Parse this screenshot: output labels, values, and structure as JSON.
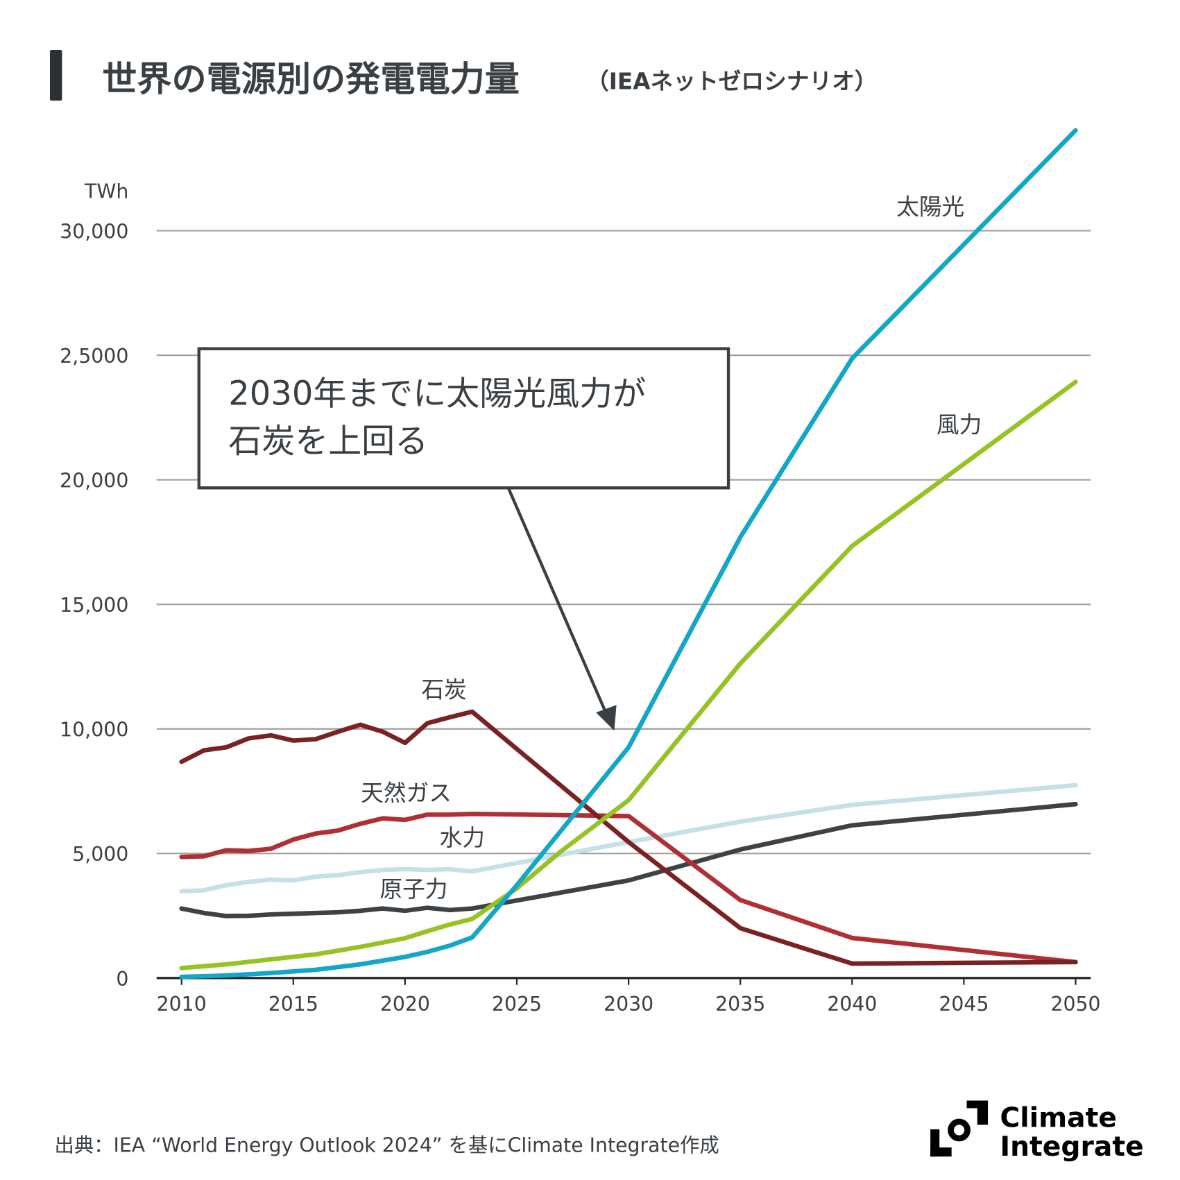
{
  "title": {
    "main": "世界の電源別の発電電力量",
    "sub": "（IEAネットゼロシナリオ）"
  },
  "source": "出典：IEA “World Energy Outlook 2024” を基にClimate Integrate作成",
  "logo": {
    "line1": "Climate",
    "line2": "Integrate"
  },
  "annotation": {
    "line1": "2030年までに太陽光風力が",
    "line2": "石炭を上回る"
  },
  "colors": {
    "solar": "#12a6c7",
    "wind": "#97c224",
    "coal": "#7a2222",
    "gas": "#b02f34",
    "hydro": "#c6e0e7",
    "nuclear": "#3c4246",
    "title": "#2b3034"
  },
  "chart_data": {
    "type": "line",
    "title": "世界の電源別の発電電力量（IEAネットゼロシナリオ）",
    "ylabel": "TWh",
    "xlabel": "",
    "xlim": [
      2010,
      2050
    ],
    "ylim": [
      0,
      30000
    ],
    "grid": true,
    "x_ticks": [
      "2010",
      "2015",
      "2020",
      "2025",
      "2030",
      "2035",
      "2040",
      "2045",
      "2050"
    ],
    "y_ticks": [
      {
        "v": 0,
        "label": "0"
      },
      {
        "v": 5000,
        "label": "5,000"
      },
      {
        "v": 10000,
        "label": "10,000"
      },
      {
        "v": 15000,
        "label": "15,000"
      },
      {
        "v": 20000,
        "label": "20,000"
      },
      {
        "v": 25000,
        "label": "2,5000"
      },
      {
        "v": 30000,
        "label": "30,000"
      }
    ],
    "series": [
      {
        "key": "hydro",
        "name": "水力",
        "x": [
          2010,
          2011,
          2012,
          2013,
          2014,
          2015,
          2016,
          2017,
          2018,
          2019,
          2020,
          2021,
          2022,
          2023,
          2030,
          2035,
          2040,
          2050
        ],
        "values": [
          3490,
          3520,
          3730,
          3860,
          3950,
          3920,
          4070,
          4130,
          4250,
          4340,
          4370,
          4340,
          4370,
          4280,
          5460,
          6280,
          6950,
          7740
        ]
      },
      {
        "key": "nuclear",
        "name": "原子力",
        "x": [
          2010,
          2011,
          2012,
          2013,
          2014,
          2015,
          2016,
          2017,
          2018,
          2019,
          2020,
          2021,
          2022,
          2023,
          2030,
          2035,
          2040,
          2050
        ],
        "values": [
          2790,
          2610,
          2490,
          2500,
          2550,
          2580,
          2610,
          2640,
          2700,
          2790,
          2700,
          2820,
          2730,
          2790,
          3920,
          5160,
          6130,
          6980
        ]
      },
      {
        "key": "gas",
        "name": "天然ガス",
        "x": [
          2010,
          2011,
          2012,
          2013,
          2014,
          2015,
          2016,
          2017,
          2018,
          2019,
          2020,
          2021,
          2022,
          2023,
          2030,
          2035,
          2040,
          2050
        ],
        "values": [
          4860,
          4890,
          5130,
          5100,
          5190,
          5560,
          5800,
          5920,
          6190,
          6410,
          6350,
          6560,
          6560,
          6590,
          6500,
          3130,
          1610,
          640
        ]
      },
      {
        "key": "coal",
        "name": "石炭",
        "x": [
          2010,
          2011,
          2012,
          2013,
          2014,
          2015,
          2016,
          2017,
          2018,
          2019,
          2020,
          2021,
          2022,
          2023,
          2030,
          2035,
          2040,
          2050
        ],
        "values": [
          8680,
          9140,
          9260,
          9620,
          9740,
          9530,
          9590,
          9890,
          10170,
          9890,
          9440,
          10230,
          10470,
          10690,
          5460,
          2000,
          580,
          640
        ]
      },
      {
        "key": "wind",
        "name": "風力",
        "x": [
          2010,
          2012,
          2014,
          2016,
          2018,
          2020,
          2021,
          2022,
          2023,
          2025,
          2027,
          2030,
          2035,
          2040,
          2050
        ],
        "values": [
          400,
          550,
          750,
          950,
          1250,
          1600,
          1880,
          2150,
          2370,
          3600,
          5100,
          7140,
          12630,
          17340,
          23930
        ]
      },
      {
        "key": "solar",
        "name": "太陽光",
        "x": [
          2010,
          2012,
          2014,
          2016,
          2018,
          2020,
          2021,
          2022,
          2023,
          2025,
          2030,
          2035,
          2040,
          2050
        ],
        "values": [
          50,
          100,
          200,
          330,
          550,
          850,
          1050,
          1300,
          1630,
          3730,
          9260,
          17700,
          24870,
          34030
        ]
      }
    ]
  }
}
